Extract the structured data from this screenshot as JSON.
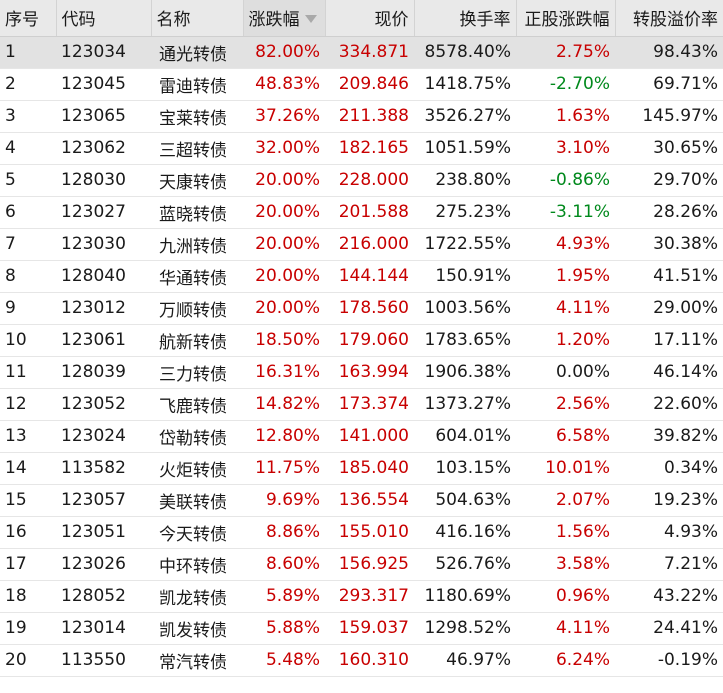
{
  "table": {
    "headers": {
      "rank": "序号",
      "code": "代码",
      "name": "名称",
      "change": "涨跌幅",
      "price": "现价",
      "turnover": "换手率",
      "stock_change": "正股涨跌幅",
      "premium": "转股溢价率"
    },
    "sort_icon": "sort-descending-icon",
    "colors": {
      "up": "#c80000",
      "down": "#00891c",
      "neutral": "#1a1a1a"
    },
    "rows": [
      {
        "rank": "1",
        "code": "123034",
        "name": "通光转债",
        "change": "82.00%",
        "price": "334.871",
        "turnover": "8578.40%",
        "stock_change": "2.75%",
        "premium": "98.43%"
      },
      {
        "rank": "2",
        "code": "123045",
        "name": "雷迪转债",
        "change": "48.83%",
        "price": "209.846",
        "turnover": "1418.75%",
        "stock_change": "-2.70%",
        "premium": "69.71%"
      },
      {
        "rank": "3",
        "code": "123065",
        "name": "宝莱转债",
        "change": "37.26%",
        "price": "211.388",
        "turnover": "3526.27%",
        "stock_change": "1.63%",
        "premium": "145.97%"
      },
      {
        "rank": "4",
        "code": "123062",
        "name": "三超转债",
        "change": "32.00%",
        "price": "182.165",
        "turnover": "1051.59%",
        "stock_change": "3.10%",
        "premium": "30.65%"
      },
      {
        "rank": "5",
        "code": "128030",
        "name": "天康转债",
        "change": "20.00%",
        "price": "228.000",
        "turnover": "238.80%",
        "stock_change": "-0.86%",
        "premium": "29.70%"
      },
      {
        "rank": "6",
        "code": "123027",
        "name": "蓝晓转债",
        "change": "20.00%",
        "price": "201.588",
        "turnover": "275.23%",
        "stock_change": "-3.11%",
        "premium": "28.26%"
      },
      {
        "rank": "7",
        "code": "123030",
        "name": "九洲转债",
        "change": "20.00%",
        "price": "216.000",
        "turnover": "1722.55%",
        "stock_change": "4.93%",
        "premium": "30.38%"
      },
      {
        "rank": "8",
        "code": "128040",
        "name": "华通转债",
        "change": "20.00%",
        "price": "144.144",
        "turnover": "150.91%",
        "stock_change": "1.95%",
        "premium": "41.51%"
      },
      {
        "rank": "9",
        "code": "123012",
        "name": "万顺转债",
        "change": "20.00%",
        "price": "178.560",
        "turnover": "1003.56%",
        "stock_change": "4.11%",
        "premium": "29.00%"
      },
      {
        "rank": "10",
        "code": "123061",
        "name": "航新转债",
        "change": "18.50%",
        "price": "179.060",
        "turnover": "1783.65%",
        "stock_change": "1.20%",
        "premium": "17.11%"
      },
      {
        "rank": "11",
        "code": "128039",
        "name": "三力转债",
        "change": "16.31%",
        "price": "163.994",
        "turnover": "1906.38%",
        "stock_change": "0.00%",
        "premium": "46.14%"
      },
      {
        "rank": "12",
        "code": "123052",
        "name": "飞鹿转债",
        "change": "14.82%",
        "price": "173.374",
        "turnover": "1373.27%",
        "stock_change": "2.56%",
        "premium": "22.60%"
      },
      {
        "rank": "13",
        "code": "123024",
        "name": "岱勒转债",
        "change": "12.80%",
        "price": "141.000",
        "turnover": "604.01%",
        "stock_change": "6.58%",
        "premium": "39.82%"
      },
      {
        "rank": "14",
        "code": "113582",
        "name": "火炬转债",
        "change": "11.75%",
        "price": "185.040",
        "turnover": "103.15%",
        "stock_change": "10.01%",
        "premium": "0.34%"
      },
      {
        "rank": "15",
        "code": "123057",
        "name": "美联转债",
        "change": "9.69%",
        "price": "136.554",
        "turnover": "504.63%",
        "stock_change": "2.07%",
        "premium": "19.23%"
      },
      {
        "rank": "16",
        "code": "123051",
        "name": "今天转债",
        "change": "8.86%",
        "price": "155.010",
        "turnover": "416.16%",
        "stock_change": "1.56%",
        "premium": "4.93%"
      },
      {
        "rank": "17",
        "code": "123026",
        "name": "中环转债",
        "change": "8.60%",
        "price": "156.925",
        "turnover": "526.76%",
        "stock_change": "3.58%",
        "premium": "7.21%"
      },
      {
        "rank": "18",
        "code": "128052",
        "name": "凯龙转债",
        "change": "5.89%",
        "price": "293.317",
        "turnover": "1180.69%",
        "stock_change": "0.96%",
        "premium": "43.22%"
      },
      {
        "rank": "19",
        "code": "123014",
        "name": "凯发转债",
        "change": "5.88%",
        "price": "159.037",
        "turnover": "1298.52%",
        "stock_change": "4.11%",
        "premium": "24.41%"
      },
      {
        "rank": "20",
        "code": "113550",
        "name": "常汽转债",
        "change": "5.48%",
        "price": "160.310",
        "turnover": "46.97%",
        "stock_change": "6.24%",
        "premium": "-0.19%"
      }
    ]
  }
}
